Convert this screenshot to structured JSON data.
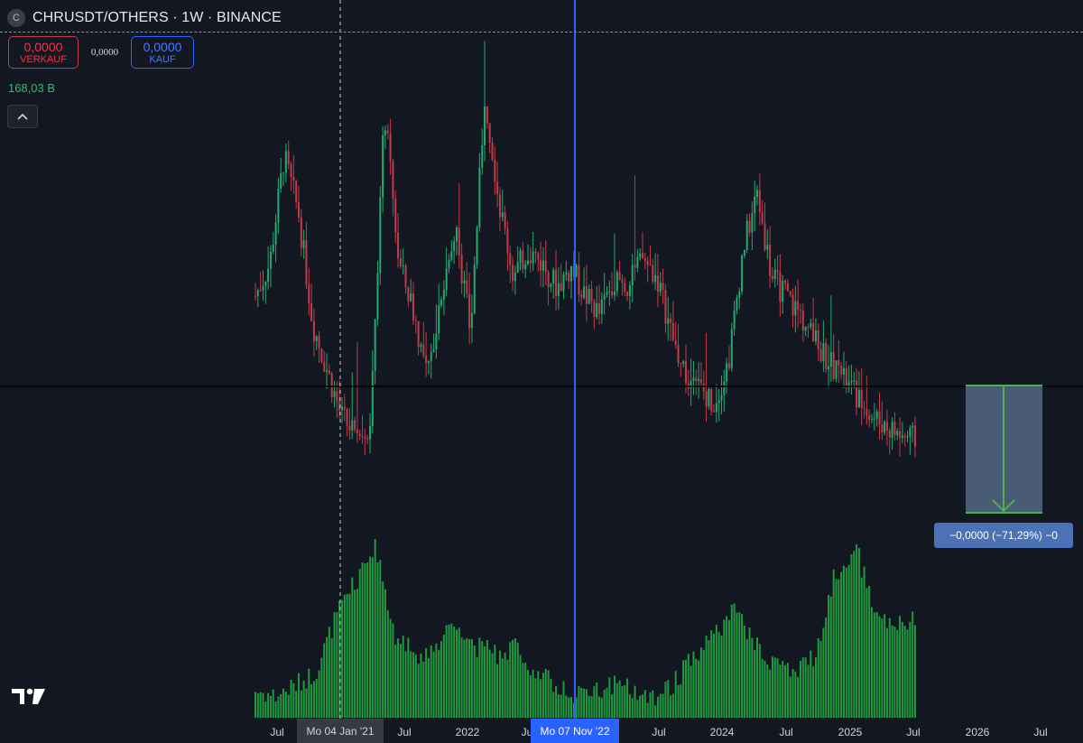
{
  "header": {
    "symbol_icon": "C",
    "title": "CHRUSDT/OTHERS · 1W · BINANCE"
  },
  "trade": {
    "sell_value": "0,0000",
    "sell_label": "VERKAUF",
    "spread": "0,0000",
    "buy_value": "0,0000",
    "buy_label": "KAUF"
  },
  "volume_label": "168,03 B",
  "x_axis": {
    "ticks": [
      "Jul",
      "Jul",
      "2022",
      "Ju",
      "Jul",
      "2024",
      "Jul",
      "2025",
      "Jul",
      "2026",
      "Jul"
    ],
    "crosshair_label": "Mo 04 Jan '21",
    "selected_label": "Mo 07 Nov '22"
  },
  "measure_label": "−0,0000 (−71,29%) −0",
  "colors": {
    "up": "#22ab6f",
    "down": "#c43a48",
    "volume": "#1f9a3e",
    "accent": "#2962ff",
    "background": "#131722"
  },
  "icons": {
    "collapse": "chevron-up-icon",
    "logo": "tradingview-logo-icon"
  },
  "chart_data": {
    "type": "candlestick",
    "timeframe": "1W",
    "x_range": [
      "2020-05",
      "2025-07"
    ],
    "x_ticks": [
      "Jul",
      "Jul",
      "2022",
      "Ju",
      "Jul",
      "2024",
      "Jul",
      "2025",
      "Jul",
      "2026",
      "Jul"
    ],
    "price_path": [
      0.48,
      0.55,
      0.78,
      0.66,
      0.42,
      0.32,
      0.22,
      0.18,
      0.2,
      0.88,
      0.55,
      0.45,
      0.3,
      0.5,
      0.62,
      0.4,
      0.92,
      0.68,
      0.52,
      0.58,
      0.55,
      0.5,
      0.54,
      0.48,
      0.44,
      0.52,
      0.5,
      0.56,
      0.52,
      0.4,
      0.3,
      0.28,
      0.25,
      0.34,
      0.58,
      0.7,
      0.52,
      0.48,
      0.44,
      0.38,
      0.34,
      0.3,
      0.26,
      0.22,
      0.2,
      0.18,
      0.17
    ],
    "volume_path": [
      0.15,
      0.12,
      0.18,
      0.25,
      0.55,
      0.75,
      0.95,
      0.45,
      0.35,
      0.4,
      0.55,
      0.4,
      0.35,
      0.4,
      0.25,
      0.18,
      0.12,
      0.15,
      0.18,
      0.15,
      0.12,
      0.2,
      0.35,
      0.45,
      0.6,
      0.4,
      0.3,
      0.25,
      0.35,
      0.8,
      0.95,
      0.6,
      0.5,
      0.55
    ],
    "measure": {
      "change_percent": -71.29
    }
  }
}
